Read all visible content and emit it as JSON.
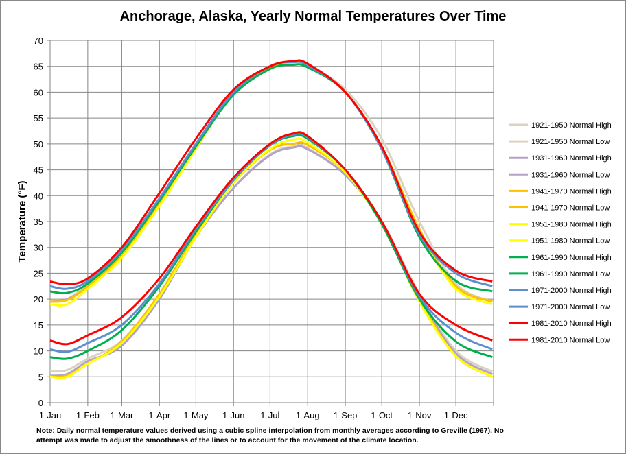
{
  "chart_data": {
    "type": "line",
    "title": "Anchorage, Alaska, Yearly Normal Temperatures Over Time",
    "ylabel": "Temperature (°F)",
    "xlabel": "",
    "ylim": [
      0,
      70
    ],
    "yticks": [
      0,
      5,
      10,
      15,
      20,
      25,
      30,
      35,
      40,
      45,
      50,
      55,
      60,
      65,
      70
    ],
    "xtick_labels": [
      "1-Jan",
      "1-Feb",
      "1-Mar",
      "1-Apr",
      "1-May",
      "1-Jun",
      "1-Jul",
      "1-Aug",
      "1-Sep",
      "1-Oct",
      "1-Nov",
      "1-Dec"
    ],
    "grid": true,
    "legend": "right",
    "x_dates": [
      "1-Jan",
      "15-Jan",
      "1-Feb",
      "1-Mar",
      "1-Apr",
      "1-May",
      "1-Jun",
      "1-Jul",
      "20-Jul",
      "1-Aug",
      "1-Sep",
      "1-Oct",
      "1-Nov",
      "1-Dec",
      "31-Dec"
    ],
    "series": [
      {
        "name": "1921-1950 Normal High",
        "color": "#d9d3bf",
        "values": [
          19.5,
          20,
          23,
          29,
          39,
          49.5,
          59.5,
          64.5,
          65.5,
          65.2,
          60.5,
          51,
          35,
          23,
          19.5
        ]
      },
      {
        "name": "1921-1950 Normal Low",
        "color": "#d9d3bf",
        "values": [
          6,
          6.3,
          8.5,
          12,
          21,
          32,
          41.5,
          48,
          49.5,
          49.2,
          44,
          35,
          21,
          10,
          6
        ]
      },
      {
        "name": "1931-1960 Normal High",
        "color": "#b3a2c7",
        "values": [
          19.5,
          20,
          22.5,
          29,
          39,
          50,
          60,
          65,
          65.8,
          65.3,
          60,
          49.5,
          33.5,
          22.5,
          19.5
        ]
      },
      {
        "name": "1931-1960 Normal Low",
        "color": "#b3a2c7",
        "values": [
          5.2,
          5.5,
          8,
          11,
          20,
          32,
          41.5,
          47.8,
          49.3,
          49,
          44,
          35,
          20.5,
          9.5,
          5.5
        ]
      },
      {
        "name": "1941-1970 Normal High",
        "color": "#ffc000",
        "values": [
          19.5,
          19.8,
          22.5,
          28.5,
          38.5,
          49.5,
          60,
          64.8,
          65.6,
          65.1,
          60,
          49.5,
          33.5,
          22.5,
          19.5
        ]
      },
      {
        "name": "1941-1970 Normal Low",
        "color": "#ffc000",
        "values": [
          5,
          5.2,
          7.5,
          11.8,
          21,
          32.5,
          42.5,
          48.8,
          50,
          49.8,
          44.5,
          35,
          20,
          9,
          5
        ]
      },
      {
        "name": "1951-1980 Normal High",
        "color": "#ffff00",
        "values": [
          19,
          19,
          22,
          28,
          38,
          49,
          60,
          64.5,
          65.5,
          65,
          60,
          49,
          33,
          22,
          19
        ]
      },
      {
        "name": "1951-1980 Normal Low",
        "color": "#ffff00",
        "values": [
          5,
          5,
          7.5,
          11.5,
          20.5,
          32,
          42.5,
          49,
          50.8,
          50.3,
          44.5,
          34.5,
          19.5,
          9,
          5
        ]
      },
      {
        "name": "1961-1990 Normal High",
        "color": "#00b050",
        "values": [
          21.5,
          21.2,
          23,
          29,
          39,
          49.5,
          59.5,
          64.5,
          65.3,
          64.8,
          60,
          49,
          32,
          23.5,
          21.5
        ]
      },
      {
        "name": "1961-1990 Normal Low",
        "color": "#00b050",
        "values": [
          8.8,
          8.5,
          10,
          14,
          22.5,
          33,
          43,
          49.7,
          51.5,
          51,
          45,
          34.5,
          20,
          11.8,
          8.8
        ]
      },
      {
        "name": "1971-2000 Normal High",
        "color": "#5b8fd0",
        "values": [
          22.5,
          22,
          23.5,
          29.5,
          39.5,
          50,
          60,
          65,
          65.8,
          65.2,
          60,
          49,
          32.5,
          25,
          22.5
        ]
      },
      {
        "name": "1971-2000 Normal Low",
        "color": "#5b8fd0",
        "values": [
          10.3,
          9.8,
          11.5,
          15,
          23,
          33.5,
          43,
          49.8,
          51.8,
          51.3,
          45,
          35,
          20.5,
          13.5,
          10.3
        ]
      },
      {
        "name": "1981-2010 Normal High",
        "color": "#ff0000",
        "values": [
          23.4,
          22.9,
          24,
          30,
          40.5,
          51,
          60.5,
          65,
          66,
          65.5,
          60,
          49.5,
          33,
          25.5,
          23.4
        ]
      },
      {
        "name": "1981-2010 Normal Low",
        "color": "#ff0000",
        "values": [
          12,
          11.3,
          13,
          16.5,
          24,
          34,
          43.5,
          50,
          52,
          51.5,
          45,
          35,
          21,
          15,
          12
        ]
      }
    ],
    "note": "Note: Daily normal temperature values derived using a cubic spline interpolation  from monthly averages according to Greville (1967).  No attempt was made to adjust the smoothness of the lines or to account for the movement of the climate location."
  }
}
